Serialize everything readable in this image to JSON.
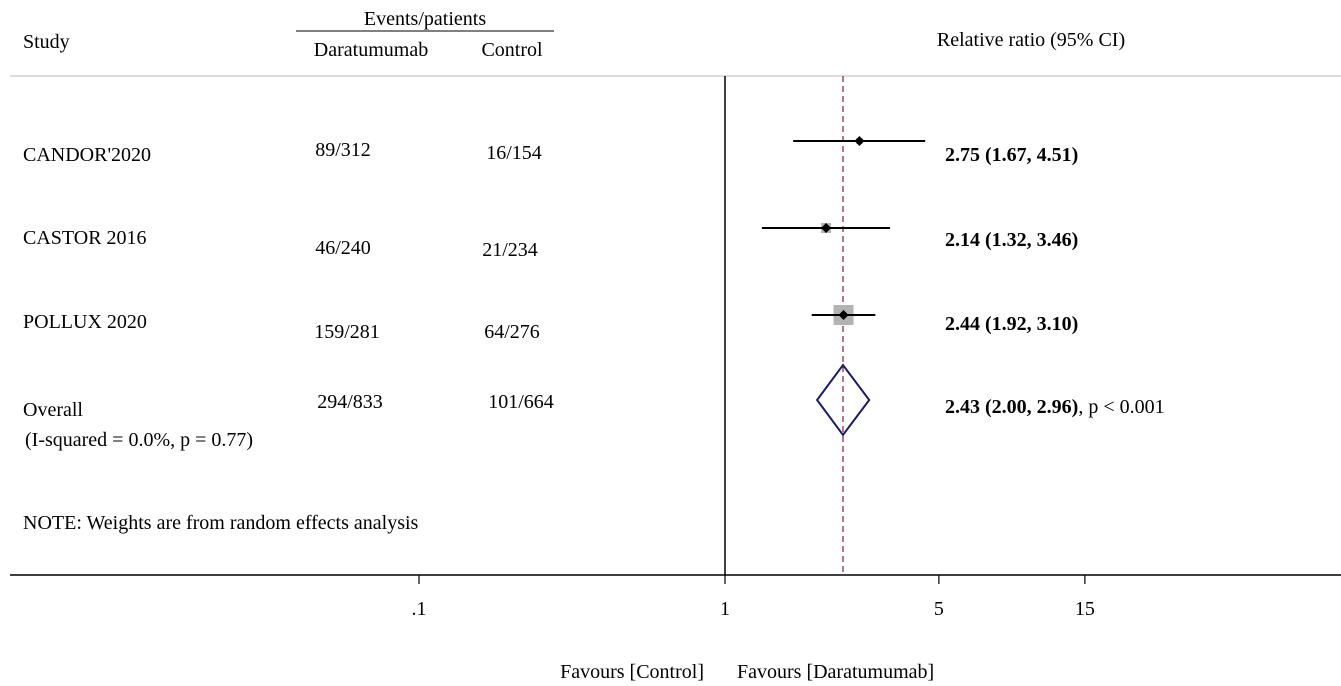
{
  "header": {
    "study": "Study",
    "events_patients": "Events/patients",
    "arm_treatment": "Daratumumab",
    "arm_control": "Control",
    "effect_measure": "Relative ratio (95% CI)"
  },
  "note": "NOTE: Weights are from random effects analysis",
  "favours_left": "Favours [Control]",
  "favours_right": "Favours [Daratumumab]",
  "chart_data": {
    "type": "forest",
    "scale": "log",
    "null_line": 1,
    "pooled_line": 2.43,
    "x_ticks": [
      {
        "value": 0.1,
        "label": ".1"
      },
      {
        "value": 1,
        "label": "1"
      },
      {
        "value": 5,
        "label": "5"
      },
      {
        "value": 15,
        "label": "15"
      }
    ],
    "studies": [
      {
        "name": "CANDOR'2020",
        "treatment": "89/312",
        "control": "16/154",
        "estimate": 2.75,
        "lower": 1.67,
        "upper": 4.51,
        "label": "2.75 (1.67, 4.51)"
      },
      {
        "name": "CASTOR 2016",
        "treatment": "46/240",
        "control": "21/234",
        "estimate": 2.14,
        "lower": 1.32,
        "upper": 3.46,
        "label": "2.14 (1.32, 3.46)"
      },
      {
        "name": "POLLUX 2020",
        "treatment": "159/281",
        "control": "64/276",
        "estimate": 2.44,
        "lower": 1.92,
        "upper": 3.1,
        "label": "2.44 (1.92, 3.10)"
      }
    ],
    "overall": {
      "name": "Overall",
      "heterogeneity": "(I-squared = 0.0%, p = 0.77)",
      "treatment": "294/833",
      "control": "101/664",
      "estimate": 2.43,
      "lower": 2.0,
      "upper": 2.96,
      "label": "2.43 (2.00, 2.96)",
      "p_label": ", p < 0.001"
    }
  }
}
